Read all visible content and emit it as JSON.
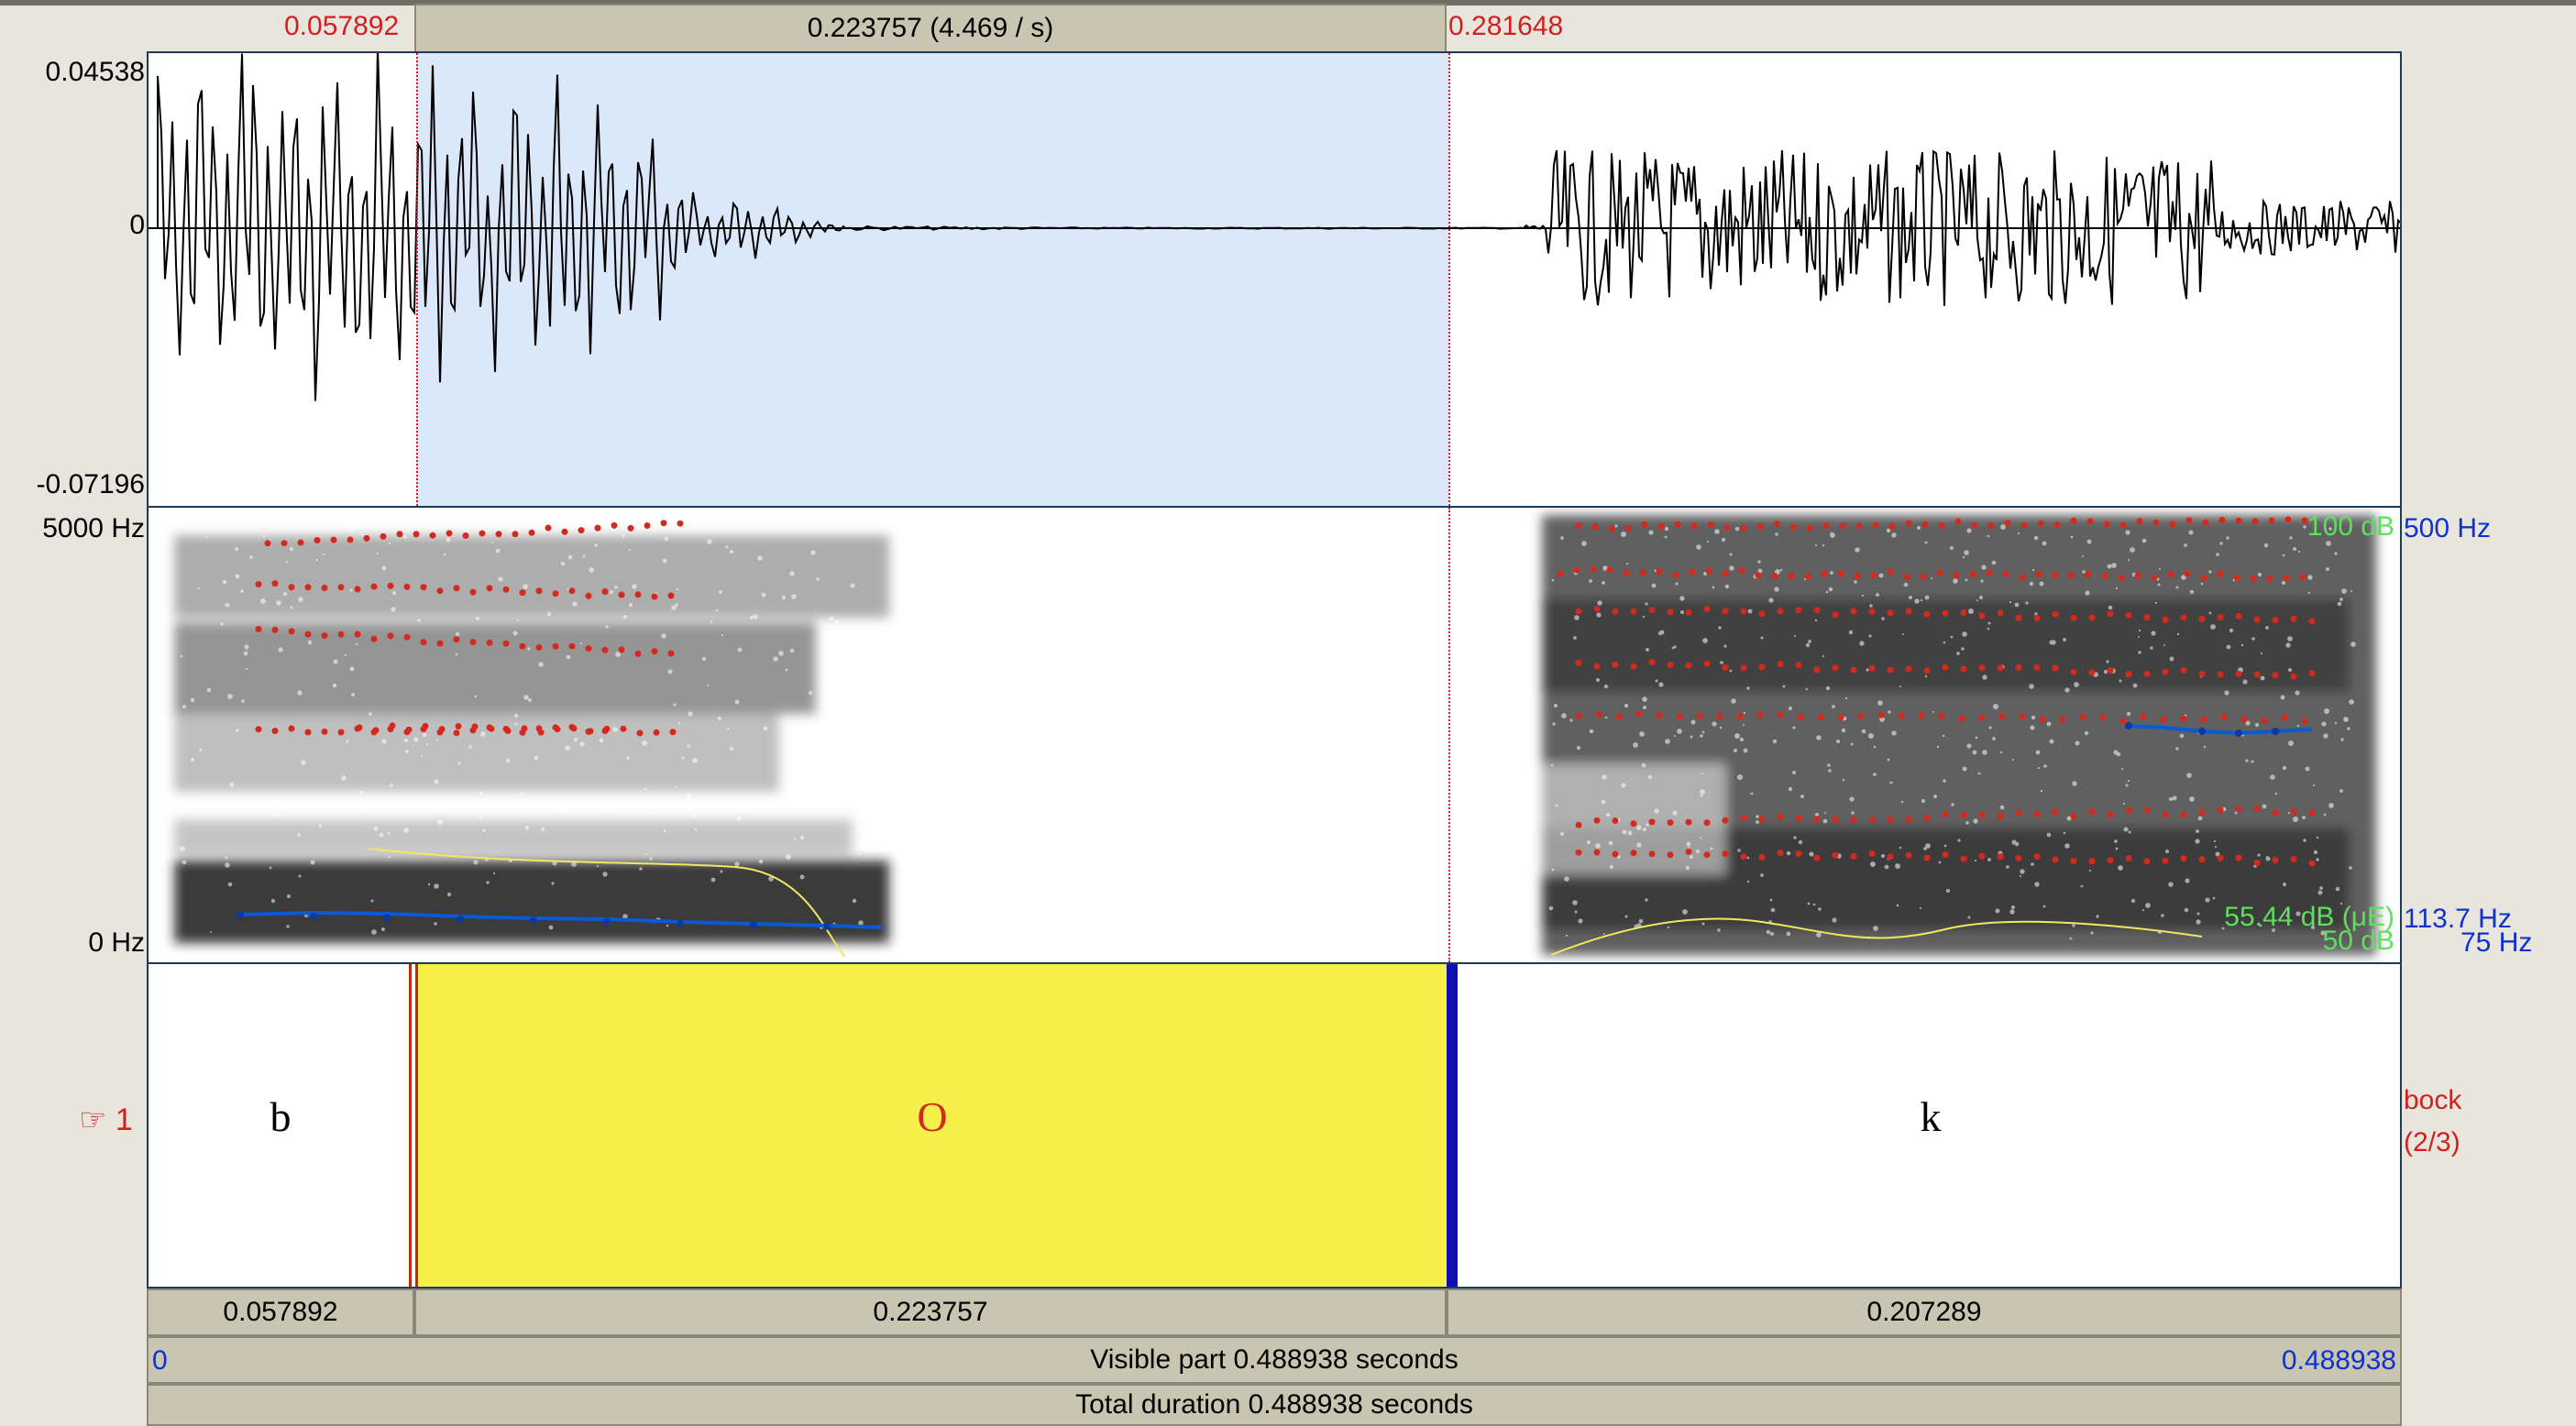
{
  "selection": {
    "start": "0.057892",
    "duration": "0.223757 (4.469 / s)",
    "end": "0.281648"
  },
  "waveform": {
    "max": "0.04538",
    "zero": "0",
    "min": "-0.07196"
  },
  "spectrogram": {
    "freq_top": "5000 Hz",
    "freq_bottom": "0 Hz",
    "pitch_top": "500 Hz",
    "pitch_mid": "113.7 Hz",
    "pitch_bottom": "75 Hz",
    "intensity_top": "100 dB",
    "intensity_value": "55.44 dB (μE)",
    "intensity_bottom": "50 dB"
  },
  "tier": {
    "marker": "☞ 1",
    "name": "bock",
    "count": "(2/3)",
    "intervals": [
      "b",
      "O",
      "k"
    ]
  },
  "durations": {
    "left": "0.057892",
    "selected": "0.223757",
    "right": "0.207289"
  },
  "visible": {
    "start": "0",
    "label": "Visible part 0.488938 seconds",
    "end": "0.488938"
  },
  "total": {
    "label": "Total duration 0.488938 seconds"
  },
  "colors": {
    "selection": "#dbe8f9",
    "interval_selected": "#f7ef4a",
    "formant": "#d42a1e",
    "pitch": "#0a5ad6",
    "intensity": "#f0e860",
    "boundary": "#1010b0"
  }
}
